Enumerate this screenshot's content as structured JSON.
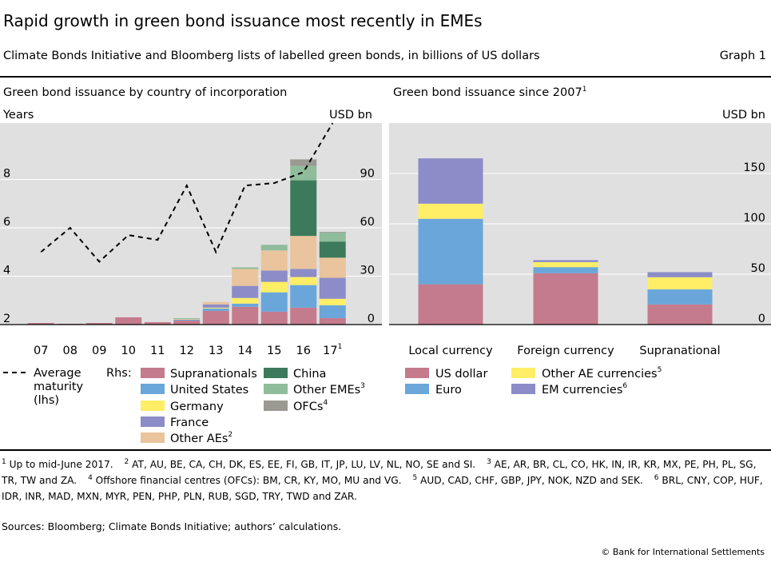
{
  "header": {
    "title": "Rapid growth in green bond issuance most recently in EMEs",
    "subtitle": "Climate Bonds Initiative and Bloomberg lists of labelled green bonds, in billions of US dollars",
    "graph_number": "Graph 1"
  },
  "colors": {
    "panel_bg": "#e0e0e0",
    "Supranationals": "#c47b8d",
    "United States": "#6aa6da",
    "Germany": "#ffee66",
    "France": "#8c8cc8",
    "Other AEs": "#e9c49c",
    "China": "#3d7a5c",
    "Other EMEs": "#8fbc9b",
    "OFCs": "#9a9a92",
    "US dollar": "#c47b8d",
    "Euro": "#6aa6da",
    "Other AE currencies": "#ffee66",
    "EM currencies": "#8c8cc8"
  },
  "legend": {
    "left": {
      "maturity_label_lines": [
        "Average",
        "maturity",
        "(lhs)"
      ],
      "rhs_label": "Rhs:",
      "items": [
        {
          "label": "Supranationals",
          "key": "Supranationals",
          "sup": ""
        },
        {
          "label": "United States",
          "key": "United States",
          "sup": ""
        },
        {
          "label": "Germany",
          "key": "Germany",
          "sup": ""
        },
        {
          "label": "France",
          "key": "France",
          "sup": ""
        },
        {
          "label": "Other AEs",
          "key": "Other AEs",
          "sup": "2"
        },
        {
          "label": "China",
          "key": "China",
          "sup": ""
        },
        {
          "label": "Other EMEs",
          "key": "Other EMEs",
          "sup": "3"
        },
        {
          "label": "OFCs",
          "key": "OFCs",
          "sup": "4"
        }
      ]
    },
    "right": {
      "items": [
        {
          "label": "US dollar",
          "key": "US dollar",
          "sup": ""
        },
        {
          "label": "Euro",
          "key": "Euro",
          "sup": ""
        },
        {
          "label": "Other AE currencies",
          "key": "Other AE currencies",
          "sup": "5"
        },
        {
          "label": "EM currencies",
          "key": "EM currencies",
          "sup": "6"
        }
      ]
    }
  },
  "chart_data": [
    {
      "type": "bar",
      "stacked": true,
      "title": "Green bond issuance by country of incorporation",
      "title_sup": "",
      "lhs_unit": "Years",
      "rhs_unit": "USD bn",
      "categories": [
        "07",
        "08",
        "09",
        "10",
        "11",
        "12",
        "13",
        "14",
        "15",
        "16",
        "17"
      ],
      "category_sups": [
        "",
        "",
        "",
        "",
        "",
        "",
        "",
        "",
        "",
        "",
        "1"
      ],
      "ylim_rhs": [
        0,
        125
      ],
      "yticks_rhs": [
        0,
        30,
        60,
        90
      ],
      "ylim_lhs": [
        2,
        10.33
      ],
      "yticks_lhs": [
        2,
        4,
        6,
        8
      ],
      "series": [
        {
          "name": "Supranationals",
          "values": [
            1,
            0.5,
            1,
            4.5,
            1.5,
            2.5,
            8.5,
            11,
            8,
            10.5,
            4
          ]
        },
        {
          "name": "United States",
          "values": [
            0,
            0,
            0,
            0,
            0,
            0.5,
            1.5,
            2,
            12,
            14,
            8
          ]
        },
        {
          "name": "Germany",
          "values": [
            0,
            0,
            0,
            0,
            0,
            0,
            0.5,
            3.5,
            6.5,
            5,
            4
          ]
        },
        {
          "name": "France",
          "values": [
            0,
            0,
            0,
            0,
            0,
            0,
            2,
            7.5,
            7,
            5,
            13
          ]
        },
        {
          "name": "Other AEs",
          "values": [
            0,
            0,
            0,
            0,
            0,
            0.5,
            1.5,
            10.5,
            12.5,
            20.5,
            12.5
          ]
        },
        {
          "name": "China",
          "values": [
            0,
            0,
            0,
            0,
            0,
            0,
            0,
            0,
            0,
            34.5,
            10
          ]
        },
        {
          "name": "Other EMEs",
          "values": [
            0,
            0,
            0,
            0,
            0,
            0.5,
            0,
            1,
            3.5,
            9,
            5.5
          ]
        },
        {
          "name": "OFCs",
          "values": [
            0,
            0,
            0,
            0,
            0,
            0,
            0,
            0,
            0,
            4,
            0.5
          ]
        }
      ],
      "line_series": {
        "name": "Average maturity",
        "axis": "lhs",
        "values": [
          5.0,
          6.0,
          4.6,
          5.7,
          5.5,
          7.75,
          5.0,
          7.75,
          7.85,
          8.3,
          10.33
        ]
      }
    },
    {
      "type": "bar",
      "stacked": true,
      "title": "Green bond issuance since 2007",
      "title_sup": "1",
      "rhs_unit": "USD bn",
      "categories": [
        "Local currency",
        "Foreign currency",
        "Supranational"
      ],
      "ylim": [
        0,
        200
      ],
      "yticks": [
        0,
        50,
        100,
        150
      ],
      "series": [
        {
          "name": "US dollar",
          "values": [
            40,
            51,
            20
          ]
        },
        {
          "name": "Euro",
          "values": [
            65,
            6,
            15
          ]
        },
        {
          "name": "Other AE currencies",
          "values": [
            15,
            5,
            12
          ]
        },
        {
          "name": "EM currencies",
          "values": [
            45,
            2,
            5
          ]
        }
      ]
    }
  ],
  "footnotes": [
    {
      "num": "1",
      "text": "Up to mid-June 2017."
    },
    {
      "num": "2",
      "text": "AT, AU, BE, CA, CH, DK, ES, EE, FI, GB, IT, JP, LU, LV, NL, NO, SE and SI."
    },
    {
      "num": "3",
      "text": "AE, AR, BR, CL, CO, HK, IN, IR, KR, MX, PE, PH, PL, SG, TR, TW and ZA."
    },
    {
      "num": "4",
      "text": "Offshore financial centres (OFCs): BM, CR, KY, MO, MU and VG."
    },
    {
      "num": "5",
      "text": "AUD, CAD, CHF, GBP, JPY, NOK, NZD and SEK."
    },
    {
      "num": "6",
      "text": "BRL, CNY, COP, HUF, IDR, INR, MAD, MXN, MYR, PEN, PHP, PLN, RUB, SGD, TRY, TWD and ZAR."
    }
  ],
  "sources": "Sources: Bloomberg; Climate Bonds Initiative; authors’ calculations.",
  "copyright": "© Bank for International Settlements"
}
